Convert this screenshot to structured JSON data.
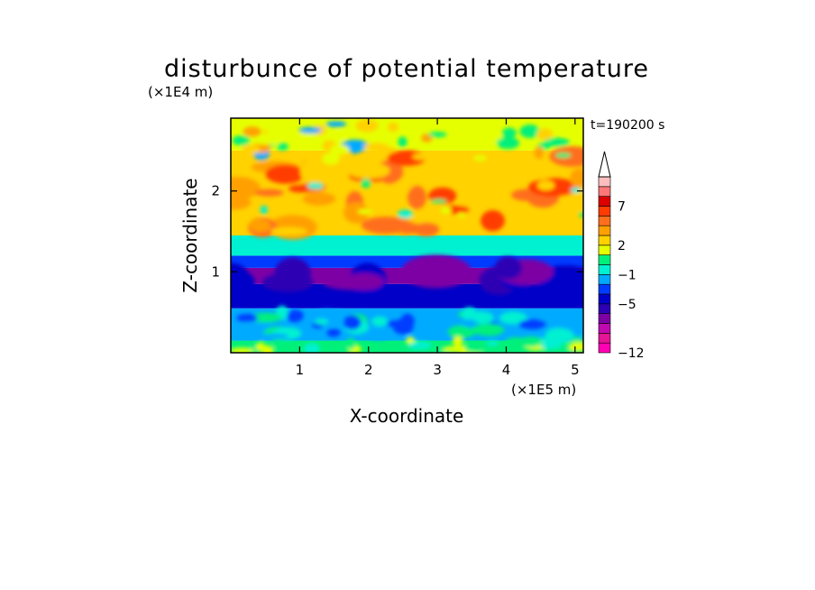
{
  "chart_data": {
    "type": "heatmap",
    "title": "disturbunce of potential temperature",
    "time_label": "t=190200 s",
    "xlabel": "X-coordinate",
    "ylabel": "Z-coordinate",
    "x_unit": "(×1E5 m)",
    "y_unit": "(×1E4 m)",
    "xlim": [
      0,
      5.12
    ],
    "ylim": [
      0,
      2.9
    ],
    "x_ticks": [
      1,
      2,
      3,
      4,
      5
    ],
    "y_ticks": [
      1,
      2
    ],
    "x_tick_labels": [
      "1",
      "2",
      "3",
      "4",
      "5"
    ],
    "y_tick_labels": [
      "1",
      "2"
    ],
    "colorbar": {
      "colors": [
        "#ff00b4",
        "#e61496",
        "#c00aaf",
        "#7d00a5",
        "#2d00b4",
        "#0000c8",
        "#003cff",
        "#00aaff",
        "#00f0d2",
        "#00f07a",
        "#e6ff00",
        "#ffd200",
        "#ffa000",
        "#ff6e1e",
        "#ff3c00",
        "#dc0000",
        "#ff7878",
        "#ffbebe",
        "#ffffff"
      ],
      "labels": [
        {
          "text": "7",
          "band": 15
        },
        {
          "text": "2",
          "band": 11
        },
        {
          "text": "−1",
          "band": 8
        },
        {
          "text": "−5",
          "band": 5
        },
        {
          "text": "−12",
          "band": 0
        }
      ],
      "extend_max": true
    },
    "field_layers": [
      {
        "z_range": [
          0.0,
          0.15
        ],
        "value": 0,
        "note": "green/cyan near-surface layer"
      },
      {
        "z_range": [
          0.15,
          0.55
        ],
        "value": -2,
        "note": "cyan and blue cells"
      },
      {
        "z_range": [
          0.55,
          0.85
        ],
        "value": -5,
        "note": "dark blue"
      },
      {
        "z_range": [
          0.85,
          1.05
        ],
        "value": -7,
        "note": "purple band"
      },
      {
        "z_range": [
          1.05,
          1.2
        ],
        "value": -4,
        "note": "blue"
      },
      {
        "z_range": [
          1.2,
          1.45
        ],
        "value": -1,
        "note": "cyan / green transition"
      },
      {
        "z_range": [
          1.45,
          2.5
        ],
        "value": 2,
        "note": "yellow-orange with warm anomalies"
      },
      {
        "z_range": [
          2.5,
          2.9
        ],
        "value": 1,
        "note": "mixed green-yellow"
      }
    ]
  }
}
